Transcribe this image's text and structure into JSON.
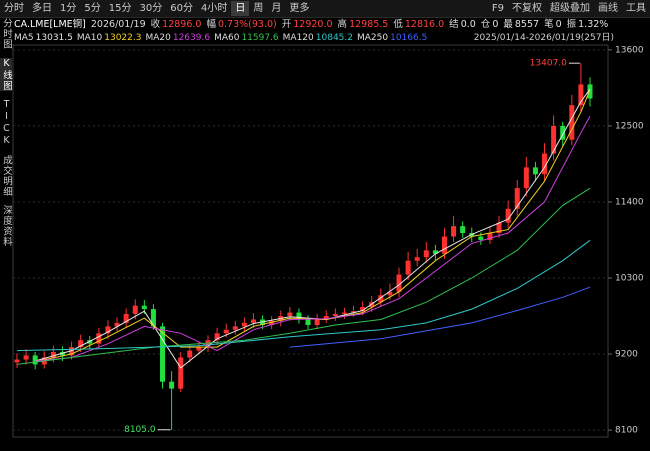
{
  "toolbar": {
    "periods": [
      "分时",
      "多日",
      "1分",
      "5分",
      "15分",
      "30分",
      "60分",
      "4小时",
      "日",
      "周",
      "月",
      "更多"
    ],
    "selected": 8,
    "tools": [
      "F9",
      "不复权",
      "超级叠加",
      "画线",
      "工具"
    ]
  },
  "side_tabs": {
    "items": [
      "分时图",
      "K线图",
      "TICK",
      "成交明细",
      "深度资料"
    ],
    "selected": 1
  },
  "quote": {
    "symbol": "CA.LME[LME铜]",
    "date": "2026/01/19",
    "fields": [
      {
        "label": "收",
        "value": "12896.0",
        "color": "#ff4040"
      },
      {
        "label": "幅",
        "value": "0.73%(93.0)",
        "color": "#ff4040"
      },
      {
        "label": "开",
        "value": "12920.0",
        "color": "#ff4040"
      },
      {
        "label": "高",
        "value": "12985.5",
        "color": "#ff4040"
      },
      {
        "label": "低",
        "value": "12816.0",
        "color": "#ff4040"
      },
      {
        "label": "结",
        "value": "0.0",
        "color": "#e0e0e0"
      },
      {
        "label": "仓",
        "value": "0",
        "color": "#e0e0e0"
      },
      {
        "label": "最",
        "value": "8557",
        "color": "#e0e0e0"
      },
      {
        "label": "笔",
        "value": "0",
        "color": "#e0e0e0"
      },
      {
        "label": "振",
        "value": "1.32%",
        "color": "#e0e0e0"
      }
    ]
  },
  "chart_data": {
    "type": "candlestick",
    "subtitle": "2025/01/14-2026/01/19(257日)",
    "open": [
      9080,
      9120,
      9180,
      9050,
      9150,
      9230,
      9180,
      9300,
      9400,
      9350,
      9500,
      9600,
      9650,
      9780,
      9900,
      9850,
      9600,
      8800,
      8700,
      9150,
      9250,
      9300,
      9400,
      9500,
      9550,
      9600,
      9650,
      9700,
      9620,
      9680,
      9750,
      9800,
      9700,
      9620,
      9700,
      9750,
      9780,
      9800,
      9820,
      9880,
      9950,
      10050,
      10100,
      10350,
      10550,
      10600,
      10700,
      10650,
      10900,
      11050,
      10950,
      10900,
      10850,
      10950,
      11100,
      11300,
      11600,
      11900,
      11800,
      12100,
      12500,
      12300,
      12800,
      13100
    ],
    "high": [
      9210,
      9270,
      9230,
      9240,
      9320,
      9310,
      9380,
      9480,
      9460,
      9580,
      9690,
      9730,
      9860,
      9990,
      9980,
      9920,
      9650,
      8950,
      9230,
      9330,
      9380,
      9470,
      9580,
      9640,
      9680,
      9730,
      9790,
      9760,
      9750,
      9830,
      9880,
      9860,
      9760,
      9780,
      9830,
      9860,
      9870,
      9900,
      9960,
      10040,
      10150,
      10220,
      10450,
      10680,
      10720,
      10820,
      10780,
      11020,
      11200,
      11120,
      11030,
      10960,
      11050,
      11200,
      11420,
      11720,
      12050,
      11980,
      12250,
      12650,
      12560,
      12950,
      13407,
      13200
    ],
    "low": [
      9000,
      9050,
      8980,
      8990,
      9080,
      9100,
      9120,
      9230,
      9280,
      9300,
      9420,
      9530,
      9580,
      9700,
      9780,
      9550,
      8700,
      8105,
      8650,
      9080,
      9200,
      9230,
      9330,
      9440,
      9480,
      9520,
      9580,
      9560,
      9560,
      9600,
      9680,
      9640,
      9560,
      9560,
      9650,
      9680,
      9710,
      9740,
      9760,
      9810,
      9880,
      9980,
      10020,
      10270,
      10470,
      10520,
      10560,
      10580,
      10820,
      10880,
      10820,
      10780,
      10790,
      10880,
      11020,
      11200,
      11480,
      11700,
      11700,
      12000,
      12200,
      12220,
      12700,
      12780
    ],
    "close": [
      9120,
      9180,
      9050,
      9150,
      9230,
      9180,
      9300,
      9400,
      9350,
      9500,
      9600,
      9650,
      9780,
      9900,
      9850,
      9600,
      8800,
      8700,
      9150,
      9250,
      9300,
      9400,
      9500,
      9550,
      9600,
      9650,
      9700,
      9620,
      9680,
      9750,
      9800,
      9700,
      9620,
      9700,
      9750,
      9780,
      9800,
      9820,
      9880,
      9950,
      10050,
      10100,
      10350,
      10550,
      10600,
      10700,
      10650,
      10900,
      11050,
      10950,
      10900,
      10850,
      10950,
      11100,
      11300,
      11600,
      11900,
      11800,
      12100,
      12500,
      12300,
      12800,
      13100,
      12896
    ],
    "up_color": "#ff3030",
    "down_color": "#20e040",
    "high_label": "13407.0",
    "low_label": "8105.0",
    "series": [
      {
        "name": "MA5",
        "color": "#e8e8e8",
        "x": [
          2,
          6,
          10,
          14,
          18,
          22,
          26,
          30,
          34,
          38,
          42,
          46,
          50,
          54,
          58,
          62,
          63
        ],
        "values": [
          9100,
          9250,
          9520,
          9820,
          9000,
          9420,
          9640,
          9740,
          9700,
          9830,
          10200,
          10650,
          10930,
          11150,
          11900,
          12850,
          13031.5
        ]
      },
      {
        "name": "MA10",
        "color": "#f0d020",
        "x": [
          2,
          6,
          10,
          14,
          18,
          22,
          26,
          30,
          34,
          38,
          42,
          46,
          50,
          54,
          58,
          62,
          63
        ],
        "values": [
          9090,
          9200,
          9450,
          9720,
          9300,
          9300,
          9600,
          9720,
          9700,
          9800,
          10100,
          10550,
          10900,
          11000,
          11700,
          12700,
          13022.3
        ]
      },
      {
        "name": "MA20",
        "color": "#d040e0",
        "x": [
          2,
          6,
          10,
          14,
          18,
          22,
          26,
          30,
          34,
          38,
          42,
          46,
          50,
          54,
          58,
          62,
          63
        ],
        "values": [
          9100,
          9150,
          9350,
          9600,
          9500,
          9250,
          9550,
          9700,
          9710,
          9780,
          10000,
          10400,
          10800,
          10950,
          11400,
          12400,
          12639.6
        ]
      },
      {
        "name": "MA60",
        "color": "#30c050",
        "x": [
          0,
          15,
          20,
          25,
          30,
          35,
          40,
          45,
          50,
          55,
          60,
          63
        ],
        "values": [
          9050,
          9300,
          9350,
          9400,
          9500,
          9620,
          9700,
          9950,
          10300,
          10700,
          11350,
          11597.6
        ]
      },
      {
        "name": "MA120",
        "color": "#30c8c8",
        "x": [
          0,
          10,
          20,
          30,
          40,
          45,
          50,
          55,
          60,
          63
        ],
        "values": [
          9250,
          9280,
          9320,
          9450,
          9550,
          9650,
          9850,
          10150,
          10550,
          10845.2
        ]
      },
      {
        "name": "MA250",
        "color": "#4060ff",
        "x": [
          30,
          40,
          50,
          55,
          60,
          63
        ],
        "values": [
          9300,
          9420,
          9650,
          9830,
          10020,
          10166.5
        ]
      }
    ],
    "ylim": [
      8000,
      13670
    ],
    "yticks": [
      8100,
      9200,
      10300,
      11400,
      12500,
      13600
    ],
    "grid": true
  }
}
